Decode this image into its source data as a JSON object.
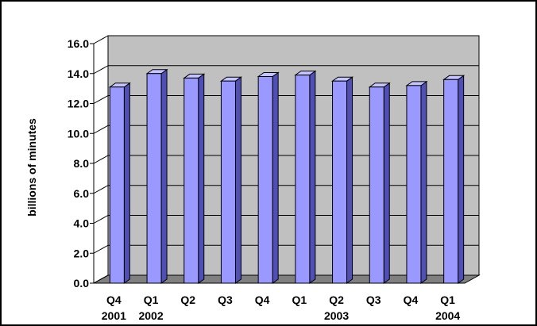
{
  "chart_data": {
    "type": "bar",
    "title": "",
    "xlabel": "",
    "ylabel": "billions of minutes",
    "ylim": [
      0,
      16
    ],
    "y_ticks": [
      "0.0",
      "2.0",
      "4.0",
      "6.0",
      "8.0",
      "10.0",
      "12.0",
      "14.0",
      "16.0"
    ],
    "y_tick_values": [
      0,
      2,
      4,
      6,
      8,
      10,
      12,
      14,
      16
    ],
    "categories": [
      {
        "line1": "Q4",
        "line2": "2001"
      },
      {
        "line1": "Q1",
        "line2": "2002"
      },
      {
        "line1": "Q2",
        "line2": ""
      },
      {
        "line1": "Q3",
        "line2": ""
      },
      {
        "line1": "Q4",
        "line2": ""
      },
      {
        "line1": "Q1",
        "line2": ""
      },
      {
        "line1": "Q2",
        "line2": "2003"
      },
      {
        "line1": "Q3",
        "line2": ""
      },
      {
        "line1": "Q4",
        "line2": ""
      },
      {
        "line1": "Q1",
        "line2": "2004"
      }
    ],
    "values": [
      13.1,
      14.0,
      13.7,
      13.5,
      13.8,
      13.9,
      13.5,
      13.1,
      13.2,
      13.6
    ],
    "grid": true,
    "style": "3d-column",
    "colors": {
      "bar_front": "#9999ff",
      "bar_side": "#4f4fb5",
      "bar_top": "#c4c4ff",
      "wall": "#c0c0c0",
      "floor": "#808080",
      "grid": "#000000"
    }
  }
}
